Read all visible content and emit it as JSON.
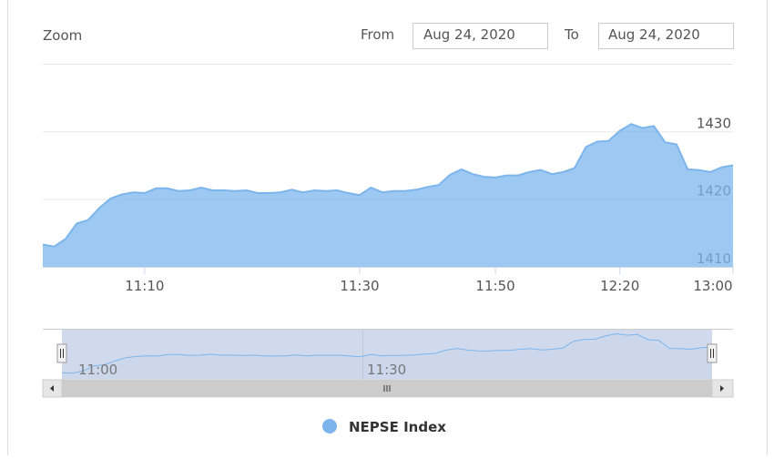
{
  "range_selector": {
    "zoom_label": "Zoom",
    "from_label": "From",
    "from_value": "Aug 24, 2020",
    "to_label": "To",
    "to_value": "Aug 24, 2020"
  },
  "chart_data": {
    "type": "area",
    "categories": [
      null,
      null,
      null,
      null,
      null,
      null,
      null,
      null,
      null,
      "11:10",
      null,
      null,
      null,
      null,
      null,
      null,
      null,
      null,
      null,
      null,
      null,
      null,
      null,
      null,
      null,
      null,
      null,
      null,
      "11:30",
      null,
      null,
      null,
      null,
      null,
      null,
      null,
      null,
      null,
      null,
      null,
      "11:50",
      null,
      null,
      null,
      null,
      null,
      null,
      null,
      null,
      null,
      null,
      "12:20",
      null,
      null,
      null,
      null,
      null,
      null,
      null,
      null,
      null,
      "13:00"
    ],
    "series": [
      {
        "name": "NEPSE Index",
        "color": "#7cb5ec",
        "values": [
          1413.3,
          1413.0,
          1414.1,
          1416.4,
          1416.9,
          1418.7,
          1420.1,
          1420.7,
          1421.0,
          1420.9,
          1421.6,
          1421.6,
          1421.2,
          1421.3,
          1421.7,
          1421.3,
          1421.3,
          1421.2,
          1421.3,
          1420.9,
          1420.9,
          1421.0,
          1421.4,
          1421.0,
          1421.3,
          1421.2,
          1421.3,
          1420.9,
          1420.6,
          1421.7,
          1421.0,
          1421.2,
          1421.2,
          1421.4,
          1421.8,
          1422.1,
          1423.6,
          1424.4,
          1423.7,
          1423.3,
          1423.2,
          1423.5,
          1423.5,
          1424.0,
          1424.3,
          1423.7,
          1424.0,
          1424.6,
          1427.7,
          1428.5,
          1428.6,
          1430.1,
          1431.1,
          1430.5,
          1430.8,
          1428.4,
          1428.1,
          1424.4,
          1424.3,
          1424.0,
          1424.7,
          1425.0
        ]
      }
    ],
    "ylim": [
      1410,
      1440
    ],
    "yticks": [
      1410,
      1420,
      1430
    ],
    "grid": true,
    "navigator": {
      "ylim": [
        1410,
        1433
      ],
      "labels": [
        "11:00",
        "11:30"
      ]
    },
    "legend": "bottom"
  }
}
